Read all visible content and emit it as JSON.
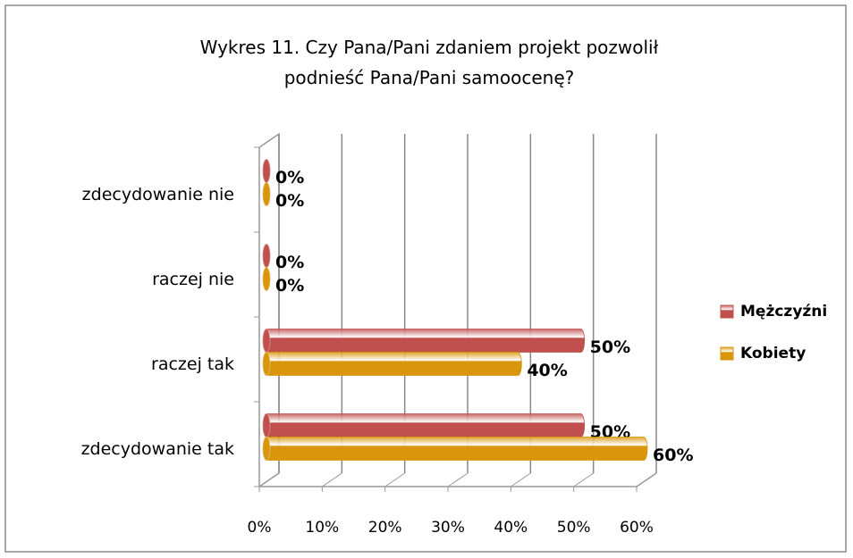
{
  "chart_data": {
    "type": "bar",
    "orientation": "horizontal",
    "title": "Wykres 11. Czy Pana/Pani zdaniem projekt pozwolił podnieść Pana/Pani samoocenę?",
    "categories": [
      "zdecydowanie nie",
      "raczej nie",
      "raczej tak",
      "zdecydowanie tak"
    ],
    "series": [
      {
        "name": "Mężczyźni",
        "color": "#c0504d",
        "values": [
          0,
          0,
          50,
          50
        ],
        "value_labels": [
          "0%",
          "0%",
          "50%",
          "50%"
        ]
      },
      {
        "name": "Kobiety",
        "color": "#d9960c",
        "values": [
          0,
          0,
          40,
          60
        ],
        "value_labels": [
          "0%",
          "0%",
          "40%",
          "60%"
        ]
      }
    ],
    "xlim": [
      0,
      60
    ],
    "xticks": [
      {
        "value": 0,
        "label": "0%"
      },
      {
        "value": 10,
        "label": "10%"
      },
      {
        "value": 20,
        "label": "20%"
      },
      {
        "value": 30,
        "label": "30%"
      },
      {
        "value": 40,
        "label": "40%"
      },
      {
        "value": 50,
        "label": "50%"
      },
      {
        "value": 60,
        "label": "60%"
      }
    ],
    "grid": true,
    "legend": "right"
  }
}
